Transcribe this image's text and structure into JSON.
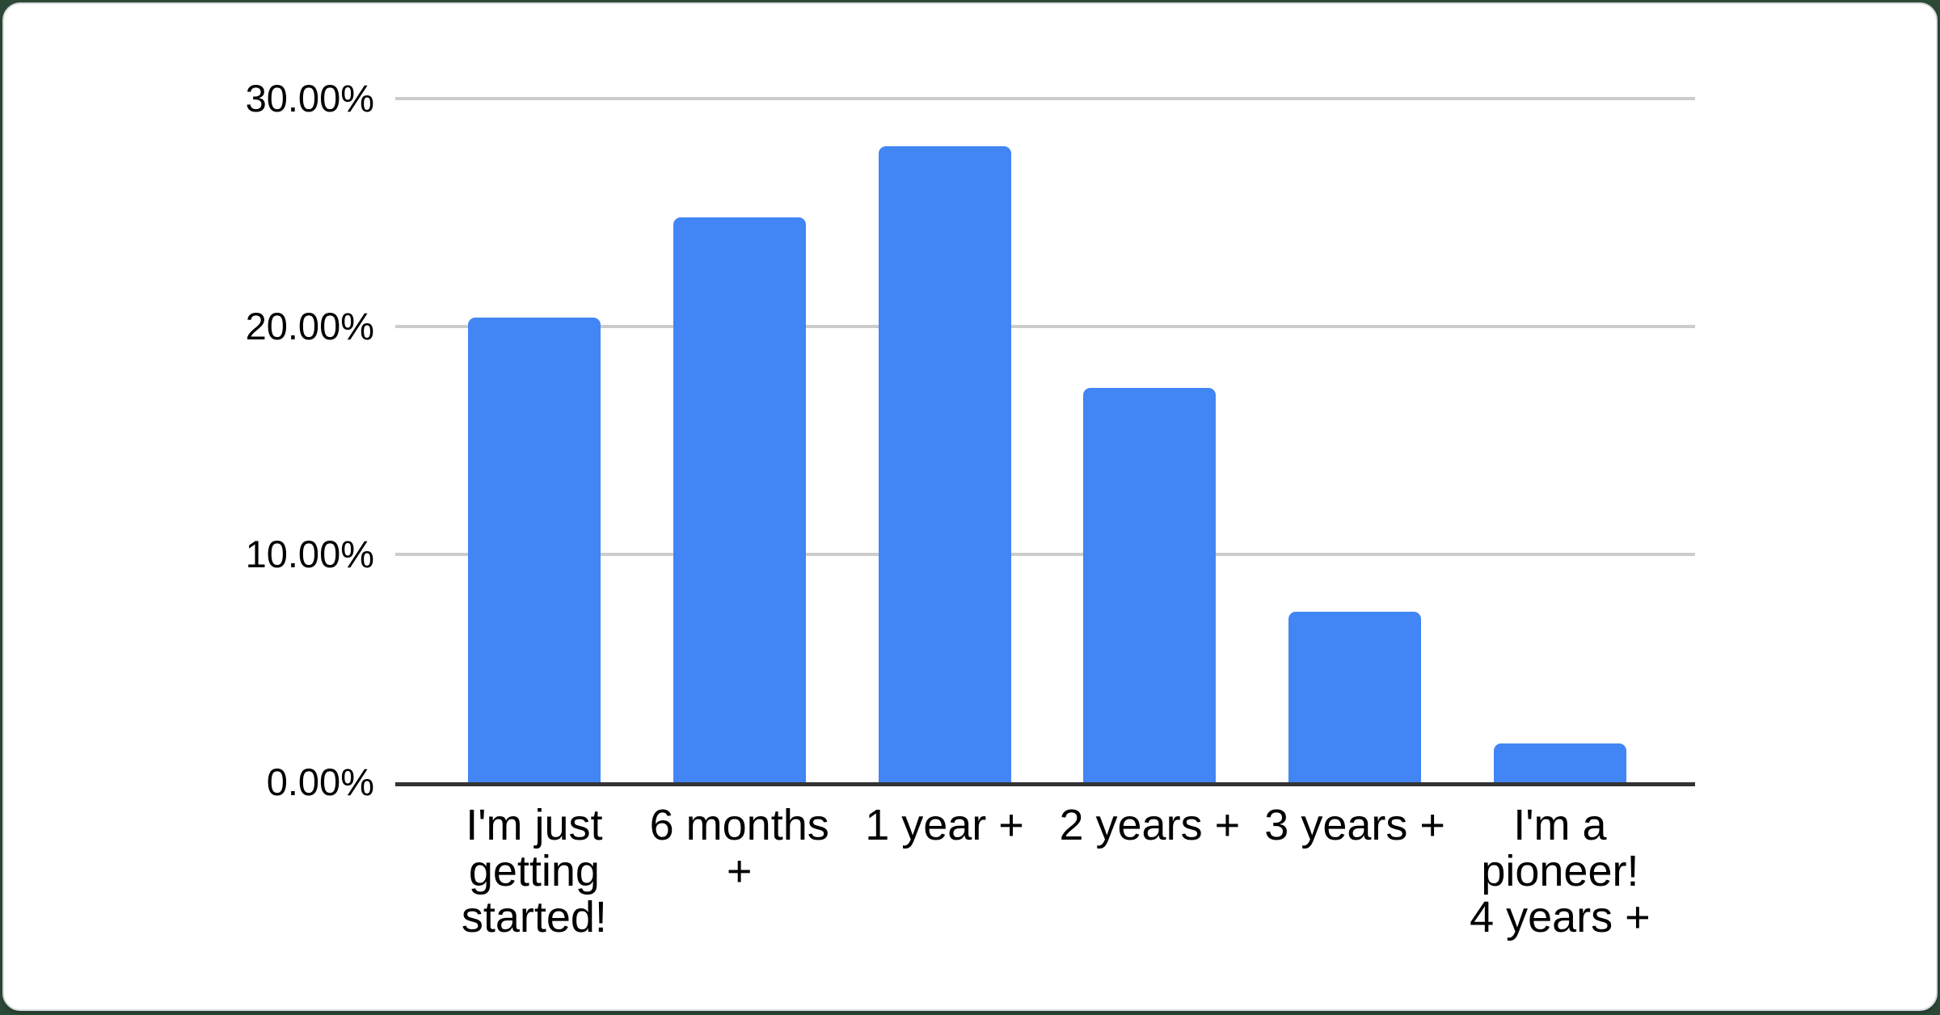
{
  "page": {
    "background": "#2b4936"
  },
  "card": {
    "background": "#ffffff",
    "border_color": "#d6d9dc"
  },
  "chart_data": {
    "type": "bar",
    "title": "",
    "xlabel": "",
    "ylabel": "",
    "categories": [
      "I'm just getting started!",
      "6 months +",
      "1 year +",
      "2 years +",
      "3 years +",
      "I'm a pioneer! 4 years +"
    ],
    "values": [
      20.4,
      24.8,
      27.9,
      17.3,
      7.5,
      1.7
    ],
    "value_unit": "%",
    "ylim": [
      0,
      30
    ],
    "yticks": [
      0,
      10,
      20,
      30
    ],
    "ytick_labels": [
      "0.00%",
      "10.00%",
      "20.00%",
      "30.00%"
    ],
    "grid": true,
    "legend": "none",
    "bar_color": "#4285f4",
    "axis_line_color": "#333333",
    "gridline_color": "#cccccc",
    "label_color": "#000000"
  }
}
